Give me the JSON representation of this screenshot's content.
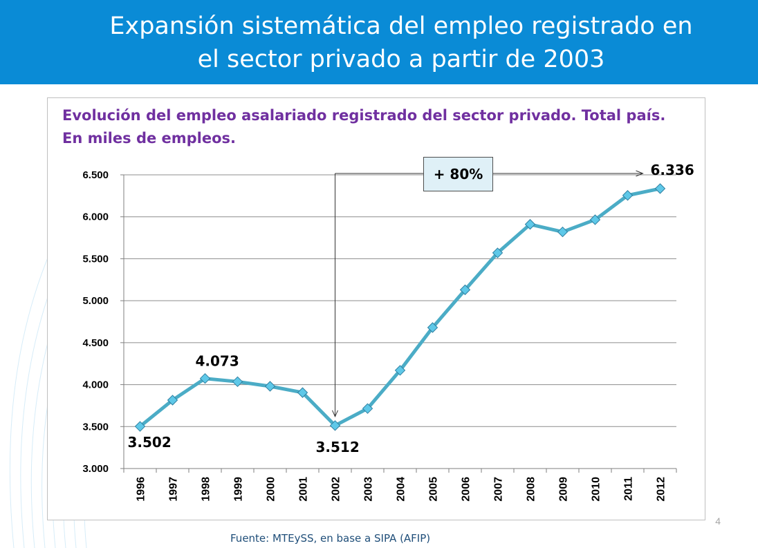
{
  "slide": {
    "title": "Expansión sistemática del empleo registrado en\nel sector privado a partir de 2003",
    "page_number": "4",
    "source": "Fuente: MTEySS, en base a SIPA (AFIP)"
  },
  "colors": {
    "header": "#0a8bd6",
    "line": "#4bacc6",
    "marker": "#5ec8e8",
    "title": "#7030a0"
  },
  "chart_data": {
    "type": "line",
    "title": "Evolución del empleo asalariado registrado del sector privado. Total país. En miles de empleos.",
    "xlabel": "",
    "ylabel": "",
    "categories": [
      "1996",
      "1997",
      "1998",
      "1999",
      "2000",
      "2001",
      "2002",
      "2003",
      "2004",
      "2005",
      "2006",
      "2007",
      "2008",
      "2009",
      "2010",
      "2011",
      "2012"
    ],
    "series": [
      {
        "values": [
          3502,
          3815,
          4073,
          4035,
          3980,
          3905,
          3512,
          3715,
          4170,
          4680,
          5130,
          5570,
          5910,
          5820,
          5965,
          6255,
          6336
        ]
      }
    ],
    "ylim": [
      3000,
      6500
    ],
    "yticks": [
      "3.000",
      "3.500",
      "4.000",
      "4.500",
      "5.000",
      "5.500",
      "6.000",
      "6.500"
    ],
    "grid": true,
    "legend": "none",
    "data_labels": [
      {
        "index": 0,
        "text": "3.502"
      },
      {
        "index": 2,
        "text": "4.073"
      },
      {
        "index": 6,
        "text": "3.512"
      },
      {
        "index": 16,
        "text": "6.336"
      }
    ],
    "annotation": {
      "text": "+ 80%",
      "from_index": 6,
      "to_index": 16
    }
  }
}
